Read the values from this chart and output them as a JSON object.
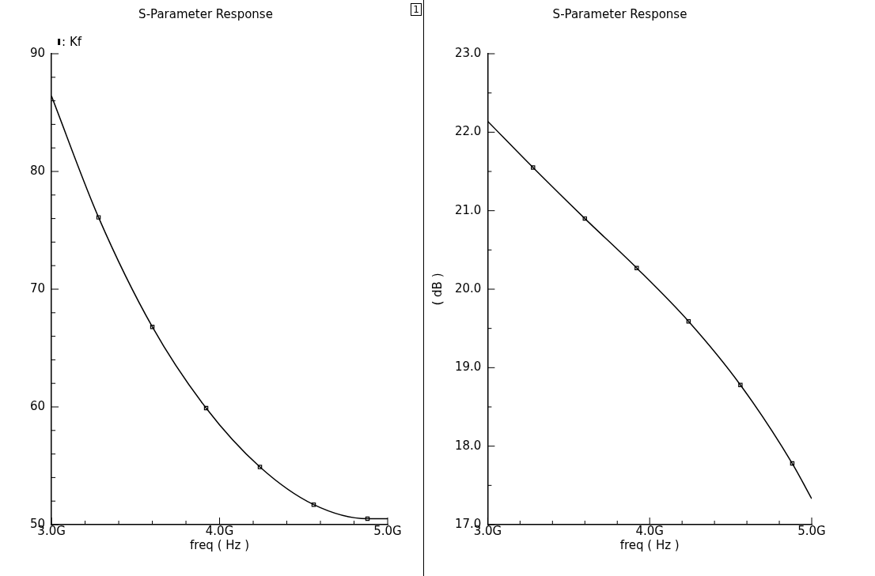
{
  "chart_data": [
    {
      "type": "line",
      "title": "S-Parameter Response",
      "xlabel": "freq ( Hz )",
      "annotations": [
        "1"
      ],
      "legend": "top left",
      "grid": false,
      "xlim": [
        3,
        5
      ],
      "xticks": [
        {
          "value": 3,
          "label": "3.0G"
        },
        {
          "value": 3.2,
          "label": null
        },
        {
          "value": 3.4,
          "label": null
        },
        {
          "value": 3.6,
          "label": null
        },
        {
          "value": 3.8,
          "label": null
        },
        {
          "value": 4,
          "label": "4.0G"
        },
        {
          "value": 4.2,
          "label": null
        },
        {
          "value": 4.4,
          "label": null
        },
        {
          "value": 4.6,
          "label": null
        },
        {
          "value": 4.8,
          "label": null
        },
        {
          "value": 5,
          "label": "5.0G"
        }
      ],
      "ylim": [
        50,
        90
      ],
      "yticks": [
        50,
        {
          "value": 52,
          "label": null
        },
        {
          "value": 54,
          "label": null
        },
        {
          "value": 56,
          "label": null
        },
        {
          "value": 58,
          "label": null
        },
        60,
        {
          "value": 62,
          "label": null
        },
        {
          "value": 64,
          "label": null
        },
        {
          "value": 66,
          "label": null
        },
        {
          "value": 68,
          "label": null
        },
        70,
        {
          "value": 72,
          "label": null
        },
        {
          "value": 74,
          "label": null
        },
        {
          "value": 76,
          "label": null
        },
        {
          "value": 78,
          "label": null
        },
        80,
        {
          "value": 82,
          "label": null
        },
        {
          "value": 84,
          "label": null
        },
        {
          "value": 86,
          "label": null
        },
        {
          "value": 88,
          "label": null
        },
        90
      ],
      "series": [
        {
          "name": ": Kf",
          "type": "line",
          "color": "#000000",
          "marker": "none",
          "x": [
            3,
            3.28,
            3.6,
            3.92,
            4.24,
            4.56,
            4.88,
            5
          ],
          "values": [
            86.4,
            76.1,
            66.8,
            59.9,
            54.9,
            51.7,
            50.5,
            50.5
          ]
        },
        {
          "type": "scatter",
          "color": "#000000",
          "marker": "square",
          "x": [
            3.28,
            3.6,
            3.92,
            4.24,
            4.56,
            4.88
          ],
          "values": [
            76.1,
            66.8,
            59.9,
            54.9,
            51.7,
            50.5
          ]
        }
      ]
    },
    {
      "type": "line",
      "title": "S-Parameter Response",
      "xlabel": "freq ( Hz )",
      "ylabel": "( dB )",
      "grid": false,
      "xlim": [
        3,
        5
      ],
      "xticks": [
        {
          "value": 3,
          "label": "3.0G"
        },
        {
          "value": 3.2,
          "label": null
        },
        {
          "value": 3.4,
          "label": null
        },
        {
          "value": 3.6,
          "label": null
        },
        {
          "value": 3.8,
          "label": null
        },
        {
          "value": 4,
          "label": "4.0G"
        },
        {
          "value": 4.2,
          "label": null
        },
        {
          "value": 4.4,
          "label": null
        },
        {
          "value": 4.6,
          "label": null
        },
        {
          "value": 4.8,
          "label": null
        },
        {
          "value": 5,
          "label": "5.0G"
        }
      ],
      "ylim": [
        17,
        23
      ],
      "yticks": [
        {
          "value": 17,
          "label": "17.0"
        },
        {
          "value": 17.5,
          "label": null
        },
        {
          "value": 18,
          "label": "18.0"
        },
        {
          "value": 18.5,
          "label": null
        },
        {
          "value": 19,
          "label": "19.0"
        },
        {
          "value": 19.5,
          "label": null
        },
        {
          "value": 20,
          "label": "20.0"
        },
        {
          "value": 20.5,
          "label": null
        },
        {
          "value": 21,
          "label": "21.0"
        },
        {
          "value": 21.5,
          "label": null
        },
        {
          "value": 22,
          "label": "22.0"
        },
        {
          "value": 22.5,
          "label": null
        },
        {
          "value": 23,
          "label": "23.0"
        }
      ],
      "series": [
        {
          "type": "line",
          "color": "#000000",
          "marker": "none",
          "x": [
            3,
            3.28,
            3.6,
            3.92,
            4.24,
            4.56,
            4.88,
            5
          ],
          "values": [
            22.14,
            21.55,
            20.9,
            20.27,
            19.59,
            18.78,
            17.78,
            17.33
          ]
        },
        {
          "type": "scatter",
          "color": "#000000",
          "marker": "square",
          "x": [
            3.28,
            3.6,
            3.92,
            4.24,
            4.56,
            4.88
          ],
          "values": [
            21.55,
            20.9,
            20.27,
            19.59,
            18.78,
            17.78
          ]
        }
      ]
    }
  ]
}
